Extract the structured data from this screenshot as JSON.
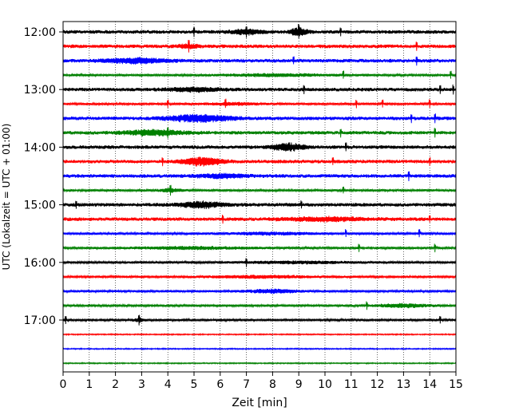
{
  "chart_data": {
    "type": "line",
    "title": "",
    "xlabel": "Zeit  [min]",
    "ylabel": "UTC (Lokalzeit = UTC + 01:00)",
    "xlim": [
      0,
      15
    ],
    "x_ticks": [
      0,
      1,
      2,
      3,
      4,
      5,
      6,
      7,
      8,
      9,
      10,
      11,
      12,
      13,
      14,
      15
    ],
    "x_tick_labels": [
      "0",
      "1",
      "2",
      "3",
      "4",
      "5",
      "6",
      "7",
      "8",
      "9",
      "10",
      "11",
      "12",
      "13",
      "14",
      "15"
    ],
    "y_tick_labels": [
      "12:00",
      "13:00",
      "14:00",
      "15:00",
      "16:00",
      "17:00"
    ],
    "y_tick_rows": [
      0,
      4,
      8,
      12,
      16,
      20
    ],
    "grid": "vertical dotted",
    "legend": "none",
    "colors": [
      "#000000",
      "#ff0000",
      "#0000ff",
      "#008000"
    ],
    "rows": [
      {
        "start": "12:00",
        "color": "#000000",
        "amplitude": 3,
        "spikes": [
          5.0,
          7.0,
          9.0,
          10.6
        ],
        "bursts": [
          {
            "center": 7.0,
            "width": 0.6,
            "amp": 4
          },
          {
            "center": 9.0,
            "width": 0.3,
            "amp": 7
          }
        ]
      },
      {
        "start": "12:15",
        "color": "#ff0000",
        "amplitude": 3,
        "spikes": [
          4.8,
          13.5
        ],
        "bursts": [
          {
            "center": 4.8,
            "width": 0.4,
            "amp": 3
          }
        ]
      },
      {
        "start": "12:30",
        "color": "#0000ff",
        "amplitude": 3,
        "spikes": [
          8.8,
          13.5
        ],
        "bursts": [
          {
            "center": 2.8,
            "width": 1.2,
            "amp": 4
          }
        ]
      },
      {
        "start": "12:45",
        "color": "#008000",
        "amplitude": 2,
        "spikes": [
          10.7,
          14.8
        ],
        "bursts": [
          {
            "center": 8.0,
            "width": 2.0,
            "amp": 2
          }
        ]
      },
      {
        "start": "13:00",
        "color": "#000000",
        "amplitude": 3,
        "spikes": [
          9.2,
          14.4,
          14.9
        ],
        "bursts": [
          {
            "center": 5.0,
            "width": 1.0,
            "amp": 3
          }
        ]
      },
      {
        "start": "13:15",
        "color": "#ff0000",
        "amplitude": 2,
        "spikes": [
          4.0,
          6.2,
          11.2,
          12.2,
          14.0
        ],
        "bursts": [
          {
            "center": 6.5,
            "width": 1.0,
            "amp": 2
          }
        ]
      },
      {
        "start": "13:30",
        "color": "#0000ff",
        "amplitude": 3,
        "spikes": [
          13.3,
          14.2
        ],
        "bursts": [
          {
            "center": 5.2,
            "width": 1.2,
            "amp": 6
          }
        ]
      },
      {
        "start": "13:45",
        "color": "#008000",
        "amplitude": 3,
        "spikes": [
          4.0,
          10.6,
          14.2
        ],
        "bursts": [
          {
            "center": 3.5,
            "width": 1.2,
            "amp": 4
          }
        ]
      },
      {
        "start": "14:00",
        "color": "#000000",
        "amplitude": 3,
        "spikes": [
          10.8
        ],
        "bursts": [
          {
            "center": 8.6,
            "width": 0.6,
            "amp": 6
          }
        ]
      },
      {
        "start": "14:15",
        "color": "#ff0000",
        "amplitude": 3,
        "spikes": [
          3.8,
          10.3,
          14.0
        ],
        "bursts": [
          {
            "center": 5.3,
            "width": 0.7,
            "amp": 7
          }
        ]
      },
      {
        "start": "14:30",
        "color": "#0000ff",
        "amplitude": 3,
        "spikes": [
          13.2
        ],
        "bursts": [
          {
            "center": 6.0,
            "width": 1.0,
            "amp": 3
          }
        ]
      },
      {
        "start": "14:45",
        "color": "#008000",
        "amplitude": 2,
        "spikes": [
          4.1,
          10.7
        ],
        "bursts": [
          {
            "center": 4.1,
            "width": 0.4,
            "amp": 3
          }
        ]
      },
      {
        "start": "15:00",
        "color": "#000000",
        "amplitude": 3,
        "spikes": [
          0.5,
          9.1
        ],
        "bursts": [
          {
            "center": 5.3,
            "width": 0.8,
            "amp": 5
          }
        ]
      },
      {
        "start": "15:15",
        "color": "#ff0000",
        "amplitude": 3,
        "spikes": [
          6.1,
          14.0
        ],
        "bursts": [
          {
            "center": 10.0,
            "width": 1.5,
            "amp": 3
          }
        ]
      },
      {
        "start": "15:30",
        "color": "#0000ff",
        "amplitude": 2,
        "spikes": [
          10.8,
          13.6
        ],
        "bursts": [
          {
            "center": 8.0,
            "width": 1.5,
            "amp": 2
          }
        ]
      },
      {
        "start": "15:45",
        "color": "#008000",
        "amplitude": 2,
        "spikes": [
          11.3,
          14.2
        ],
        "bursts": [
          {
            "center": 5.0,
            "width": 2.0,
            "amp": 2
          }
        ]
      },
      {
        "start": "16:00",
        "color": "#000000",
        "amplitude": 2,
        "spikes": [
          7.0
        ],
        "bursts": [
          {
            "center": 9.0,
            "width": 2.0,
            "amp": 2
          }
        ]
      },
      {
        "start": "16:15",
        "color": "#ff0000",
        "amplitude": 2,
        "spikes": [],
        "bursts": [
          {
            "center": 7.5,
            "width": 2.0,
            "amp": 2
          }
        ]
      },
      {
        "start": "16:30",
        "color": "#0000ff",
        "amplitude": 2,
        "spikes": [],
        "bursts": [
          {
            "center": 8.0,
            "width": 1.0,
            "amp": 3
          }
        ]
      },
      {
        "start": "16:45",
        "color": "#008000",
        "amplitude": 2,
        "spikes": [
          11.6
        ],
        "bursts": [
          {
            "center": 13.0,
            "width": 1.0,
            "amp": 3
          }
        ]
      },
      {
        "start": "17:00",
        "color": "#000000",
        "amplitude": 2,
        "spikes": [
          0.1,
          2.9,
          14.4
        ],
        "bursts": [
          {
            "center": 2.9,
            "width": 0.2,
            "amp": 3
          }
        ]
      },
      {
        "start": "17:15",
        "color": "#ff0000",
        "amplitude": 1,
        "spikes": [],
        "bursts": []
      },
      {
        "start": "17:30",
        "color": "#0000ff",
        "amplitude": 1,
        "spikes": [],
        "bursts": []
      },
      {
        "start": "17:45",
        "color": "#008000",
        "amplitude": 1,
        "spikes": [],
        "bursts": []
      }
    ]
  }
}
